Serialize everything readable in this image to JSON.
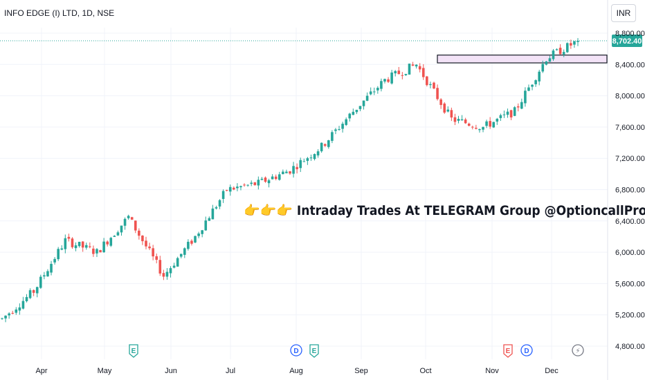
{
  "header": {
    "symbol_title": "INFO EDGE (I) LTD, 1D, NSE",
    "currency": "INR"
  },
  "colors": {
    "up": "#26a69a",
    "down": "#ef5350",
    "grid": "#f0f3fa",
    "axis_text": "#131722",
    "price_line": "#26a69a",
    "zone_fill": "#f3e3f7",
    "event_earnings": "#26a69a",
    "event_dividend": "#2962ff",
    "event_split": "#ef5350",
    "event_flash": "#787b86"
  },
  "annotation": {
    "text": "👉👉👉 Intraday Trades At TELEGRAM Group @OptioncallPro 📌"
  },
  "chart_data": {
    "type": "candlestick",
    "x_months": [
      "Apr",
      "May",
      "Jun",
      "Jul",
      "Aug",
      "Sep",
      "Oct",
      "Nov",
      "Dec"
    ],
    "y_ticks": [
      "8,800.00",
      "8,400.00",
      "8,000.00",
      "7,600.00",
      "7,200.00",
      "6,800.00",
      "6,400.00",
      "6,000.00",
      "5,600.00",
      "5,200.00",
      "4,800.00"
    ],
    "ylim": [
      4650,
      9200
    ],
    "last_price": "8,702.40",
    "last_price_value": 8702.4,
    "resistance_zone": {
      "low": 8420,
      "high": 8520,
      "from_month": "Oct",
      "to": "last bar"
    },
    "events": [
      {
        "label": "E",
        "kind": "earnings",
        "month": "May"
      },
      {
        "label": "D",
        "kind": "dividend",
        "month": "Aug"
      },
      {
        "label": "E",
        "kind": "earnings",
        "month": "Aug"
      },
      {
        "label": "E",
        "kind": "split",
        "month": "Nov"
      },
      {
        "label": "D",
        "kind": "dividend",
        "month": "Nov"
      },
      {
        "label": "⚡",
        "kind": "flash",
        "month": "Dec"
      }
    ],
    "monthly_anchors": [
      {
        "month": "Mar",
        "price": 5150
      },
      {
        "month": "Apr",
        "price": 5500
      },
      {
        "month": "Apr",
        "price": 6150
      },
      {
        "month": "May",
        "price": 6000
      },
      {
        "month": "May",
        "price": 6450
      },
      {
        "month": "Jun",
        "price": 5700
      },
      {
        "month": "Jun",
        "price": 6200
      },
      {
        "month": "Jul",
        "price": 6800
      },
      {
        "month": "Jul",
        "price": 6880
      },
      {
        "month": "Aug",
        "price": 7050
      },
      {
        "month": "Aug",
        "price": 7350
      },
      {
        "month": "Sep",
        "price": 7800
      },
      {
        "month": "Sep",
        "price": 8200
      },
      {
        "month": "Oct",
        "price": 8400
      },
      {
        "month": "Oct",
        "price": 7700
      },
      {
        "month": "Nov",
        "price": 7600
      },
      {
        "month": "Nov",
        "price": 7800
      },
      {
        "month": "Dec",
        "price": 8480
      },
      {
        "month": "Dec",
        "price": 8700
      }
    ]
  }
}
